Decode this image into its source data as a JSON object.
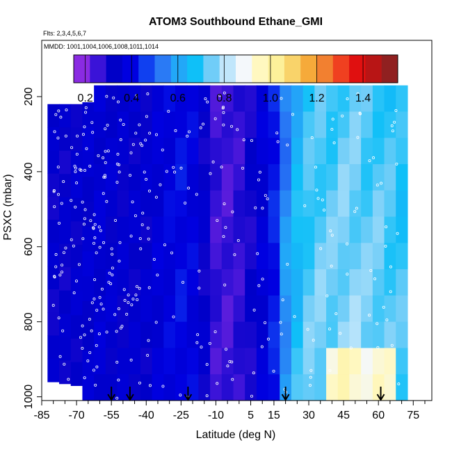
{
  "chart_data": {
    "type": "heatmap",
    "title": "ATOM3 Southbound Ethane_GMI",
    "flights_note": "Flts: 2,3,4,5,6,7",
    "dates_note": "MMDD: 1001,1004,1006,1008,1011,1014",
    "xlabel": "Latitude (deg N)",
    "ylabel": "PSXC (mbar)",
    "xlim": [
      -85,
      83
    ],
    "ylim": [
      1010,
      50
    ],
    "x_ticks": [
      -85,
      -70,
      -55,
      -40,
      -25,
      -10,
      5,
      15,
      30,
      45,
      60,
      75
    ],
    "y_ticks": [
      200,
      400,
      600,
      800,
      1000
    ],
    "colorbar": {
      "min": 0.15,
      "max": 1.55,
      "ticks": [
        0.2,
        0.4,
        0.6,
        0.8,
        1.0,
        1.2,
        1.4
      ],
      "colors": [
        "#8a2be2",
        "#3a13d8",
        "#0000c8",
        "#0000e0",
        "#1040f0",
        "#2a7af5",
        "#22a8f8",
        "#0fc0f8",
        "#70cdf8",
        "#c0e6fb",
        "#f4f8fb",
        "#fff8c0",
        "#fdf09a",
        "#f9d36a",
        "#f6aa3a",
        "#f28030",
        "#f04020",
        "#e01010",
        "#b81515",
        "#902020"
      ]
    },
    "columns": [
      {
        "lat": -80,
        "top": 220,
        "bottom": 960,
        "value": 0.3
      },
      {
        "lat": -75,
        "top": 220,
        "bottom": 965,
        "value": 0.3
      },
      {
        "lat": -70,
        "top": 220,
        "bottom": 970,
        "value": 0.31
      },
      {
        "lat": -65,
        "top": 215,
        "bottom": 1010,
        "value": 0.32
      },
      {
        "lat": -60,
        "top": 170,
        "bottom": 1010,
        "value": 0.33
      },
      {
        "lat": -55,
        "top": 170,
        "bottom": 1010,
        "value": 0.32
      },
      {
        "lat": -50,
        "top": 170,
        "bottom": 1010,
        "value": 0.31
      },
      {
        "lat": -45,
        "top": 170,
        "bottom": 1010,
        "value": 0.31
      },
      {
        "lat": -40,
        "top": 170,
        "bottom": 1010,
        "value": 0.31
      },
      {
        "lat": -35,
        "top": 170,
        "bottom": 1010,
        "value": 0.34
      },
      {
        "lat": -30,
        "top": 170,
        "bottom": 1010,
        "value": 0.36
      },
      {
        "lat": -25,
        "top": 170,
        "bottom": 1010,
        "value": 0.38
      },
      {
        "lat": -20,
        "top": 170,
        "bottom": 1010,
        "value": 0.36
      },
      {
        "lat": -15,
        "top": 170,
        "bottom": 1010,
        "value": 0.3
      },
      {
        "lat": -10,
        "top": 170,
        "bottom": 1010,
        "value": 0.23
      },
      {
        "lat": -5,
        "top": 170,
        "bottom": 1010,
        "value": 0.22
      },
      {
        "lat": 0,
        "top": 170,
        "bottom": 1010,
        "value": 0.24
      },
      {
        "lat": 5,
        "top": 170,
        "bottom": 1010,
        "value": 0.28
      },
      {
        "lat": 10,
        "top": 170,
        "bottom": 1010,
        "value": 0.34
      },
      {
        "lat": 15,
        "top": 170,
        "bottom": 1010,
        "value": 0.4
      },
      {
        "lat": 20,
        "top": 170,
        "bottom": 1010,
        "value": 0.52
      },
      {
        "lat": 25,
        "top": 170,
        "bottom": 1010,
        "value": 0.62
      },
      {
        "lat": 30,
        "top": 170,
        "bottom": 1010,
        "value": 0.68
      },
      {
        "lat": 35,
        "top": 170,
        "bottom": 1010,
        "value": 0.7
      },
      {
        "lat": 40,
        "top": 170,
        "bottom": 1010,
        "value": 0.7
      },
      {
        "lat": 45,
        "top": 170,
        "bottom": 1010,
        "value": 0.72
      },
      {
        "lat": 50,
        "top": 170,
        "bottom": 1010,
        "value": 0.72
      },
      {
        "lat": 55,
        "top": 170,
        "bottom": 1010,
        "value": 0.7
      },
      {
        "lat": 60,
        "top": 170,
        "bottom": 1010,
        "value": 0.7
      },
      {
        "lat": 65,
        "top": 170,
        "bottom": 1010,
        "value": 0.68
      },
      {
        "lat": 70,
        "top": 170,
        "bottom": 1010,
        "value": 0.66
      }
    ],
    "profile_markers_lat": [
      -55,
      -47,
      -22,
      20,
      61
    ]
  }
}
